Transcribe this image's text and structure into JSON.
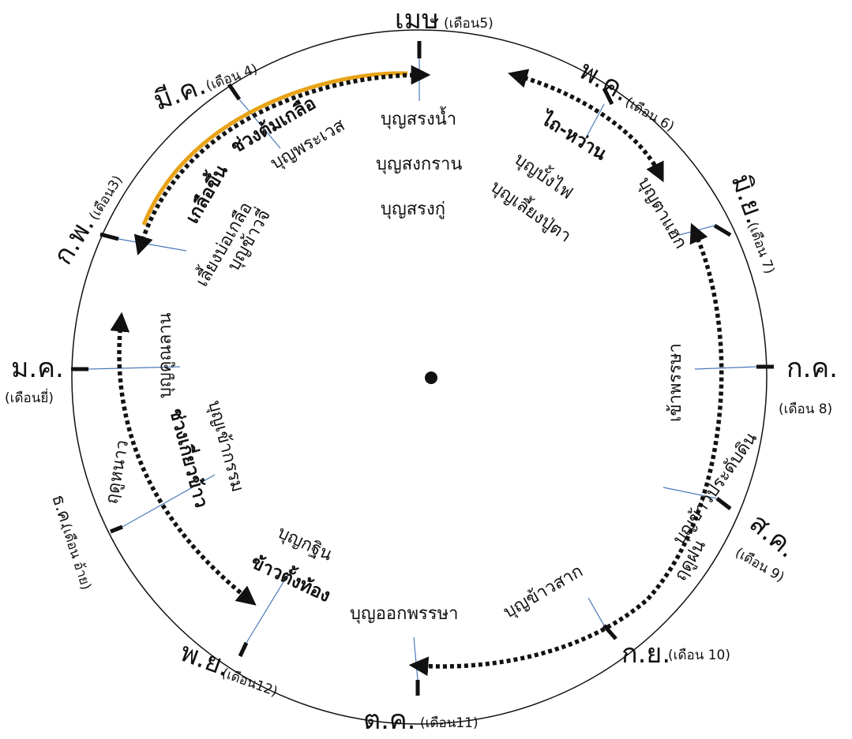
{
  "colors": {
    "highlight_arc": "#E8A317",
    "ink": "#111111",
    "leader_line": "#4a7ab8"
  },
  "months": [
    {
      "id": "mesa",
      "name": "เมษ",
      "sub": "(เดือน5)"
    },
    {
      "id": "pk",
      "name": "พ.ค.",
      "sub": "(เดือน 6)"
    },
    {
      "id": "miy",
      "name": "มิ.ย.",
      "sub": "(เดือน 7)"
    },
    {
      "id": "kk",
      "name": "ก.ค.",
      "sub": "(เดือน 8)"
    },
    {
      "id": "sk",
      "name": "ส.ค.",
      "sub": "(เดือน 9)"
    },
    {
      "id": "ky",
      "name": "ก.ย.",
      "sub": "(เดือน 10)"
    },
    {
      "id": "tk",
      "name": "ต.ค.",
      "sub": "(เดือน11)"
    },
    {
      "id": "py",
      "name": "พ.ย.",
      "sub": "(เดือน12)"
    },
    {
      "id": "tc",
      "name": "ธ.ค.",
      "sub": "(เดือน อ้าย)"
    },
    {
      "id": "mk",
      "name": "ม.ค.",
      "sub": "(เดือนยี่)"
    },
    {
      "id": "kp",
      "name": "ก.พ.",
      "sub": "(เดือน3)"
    },
    {
      "id": "mik",
      "name": "มี.ค.",
      "sub": "(เดือน 4)"
    }
  ],
  "festivals": {
    "song_nam": "บุญสรงน้ำ",
    "songkran": "บุญสงกราน",
    "song_ku": "บุญสรงกู่",
    "bang_fai": "บุญบั้งไฟ",
    "liang_pu_ta": "บุญเลี้ยงปู่ตา",
    "ta_haek": "บุญตาแฮก",
    "khao_pradap_din": "บุญข้าวประดับดิน",
    "khao_sak": "บุญข้าวสาก",
    "ok_phansa": "บุญออกพรรษา",
    "kathin": "บุญกฐิน",
    "khao_kam": "บุญเข้ากรรม",
    "khun_lan": "บุญคูณลาน",
    "khao_chi": "บุญข้าวจี่",
    "phra_wet": "บุญพระเวส",
    "liang_bo_kluea": "เลี้ยงบ่อเกลือ"
  },
  "periods": {
    "tom_kluea": "ช่วงต้มเกลือ",
    "kluea_khuen": "เกลือขึ้น",
    "tai_wan": "ไถ-หว่าน",
    "khao_phansa": "เข้าพรรษา",
    "rain_season": "ฤดูฝน",
    "khao_tang_thong": "ข้าวตั้งท้อง",
    "harvest": "ช่วงเกี่ยวข้าว",
    "cold_season": "ฤดูหนาว"
  }
}
